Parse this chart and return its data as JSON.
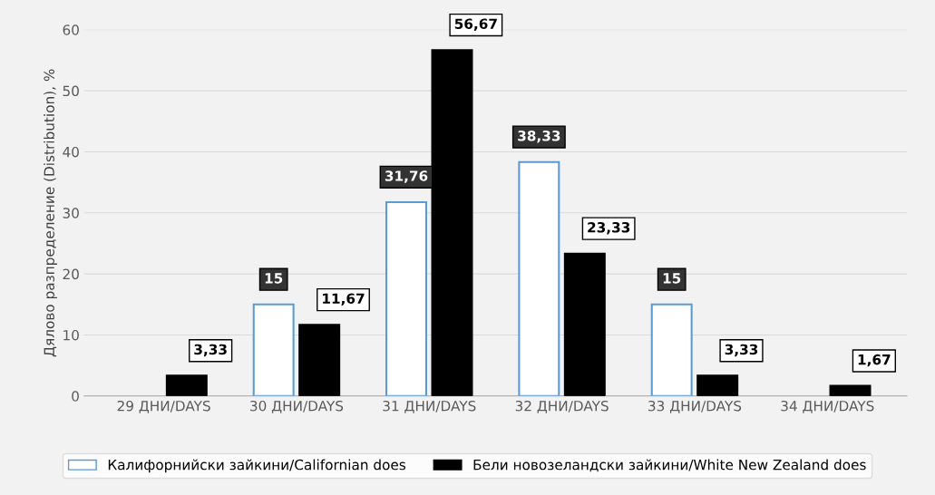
{
  "chart_data": {
    "type": "bar",
    "ylabel": "Дялово разпределение (Distribution), %",
    "categories": [
      "29 ДНИ/DAYS",
      "30 ДНИ/DAYS",
      "31 ДНИ/DAYS",
      "32 ДНИ/DAYS",
      "33 ДНИ/DAYS",
      "34 ДНИ/DAYS"
    ],
    "series": [
      {
        "name": "Калифорнийски зайкини/Californian does",
        "color": "#ffffff",
        "values": [
          null,
          15,
          31.76,
          38.33,
          15,
          null
        ],
        "value_labels": [
          null,
          "15",
          "31,76",
          "38,33",
          "15",
          null
        ]
      },
      {
        "name": "Бели новозеландски зайкини/White New Zealand does",
        "color": "#000000",
        "values": [
          3.33,
          11.67,
          56.67,
          23.33,
          3.33,
          1.67
        ],
        "value_labels": [
          "3,33",
          "11,67",
          "56,67",
          "23,33",
          "3,33",
          "1,67"
        ]
      }
    ],
    "ylim": [
      0,
      60
    ],
    "yticks": [
      0,
      10,
      20,
      30,
      40,
      50,
      60
    ],
    "grid": "y",
    "legend": "bottom"
  }
}
